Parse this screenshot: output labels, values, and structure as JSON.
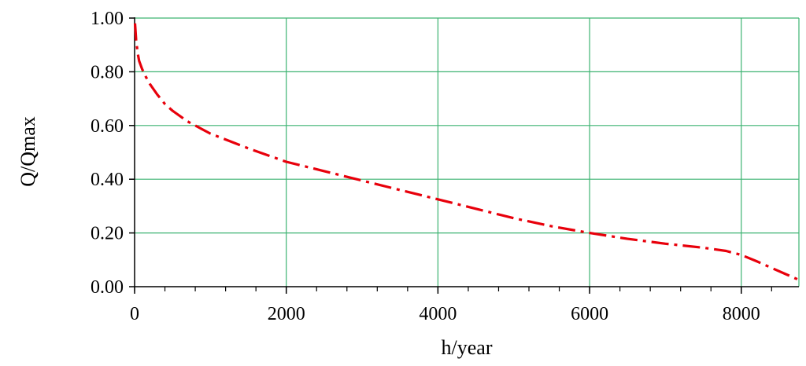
{
  "chart_data": {
    "type": "line",
    "title": "",
    "xlabel": "h/year",
    "ylabel": "Q/Qmax",
    "xlim": [
      0,
      8760
    ],
    "ylim": [
      0,
      1
    ],
    "x_ticks": [
      0,
      2000,
      4000,
      6000,
      8000
    ],
    "x_tick_labels": [
      "0",
      "2000",
      "4000",
      "6000",
      "8000"
    ],
    "y_ticks": [
      0,
      0.2,
      0.4,
      0.6,
      0.8,
      1.0
    ],
    "y_tick_labels": [
      "0.00",
      "0.20",
      "0.40",
      "0.60",
      "0.80",
      "1.00"
    ],
    "x_minor_step": 400,
    "grid": true,
    "grid_color": "#3cb371",
    "series": [
      {
        "line_style": "dash-dot",
        "color": "#e8000b",
        "x": [
          5,
          10,
          20,
          40,
          60,
          100,
          150,
          200,
          300,
          400,
          500,
          700,
          1000,
          1500,
          2000,
          2500,
          3000,
          3500,
          4000,
          4500,
          5000,
          5500,
          6000,
          6500,
          7000,
          7500,
          7800,
          8000,
          8200,
          8400,
          8600,
          8760
        ],
        "y": [
          0.98,
          0.96,
          0.92,
          0.87,
          0.84,
          0.81,
          0.78,
          0.755,
          0.715,
          0.68,
          0.655,
          0.615,
          0.57,
          0.515,
          0.465,
          0.43,
          0.395,
          0.36,
          0.325,
          0.29,
          0.255,
          0.225,
          0.2,
          0.178,
          0.16,
          0.145,
          0.133,
          0.118,
          0.095,
          0.07,
          0.045,
          0.025
        ]
      }
    ]
  }
}
